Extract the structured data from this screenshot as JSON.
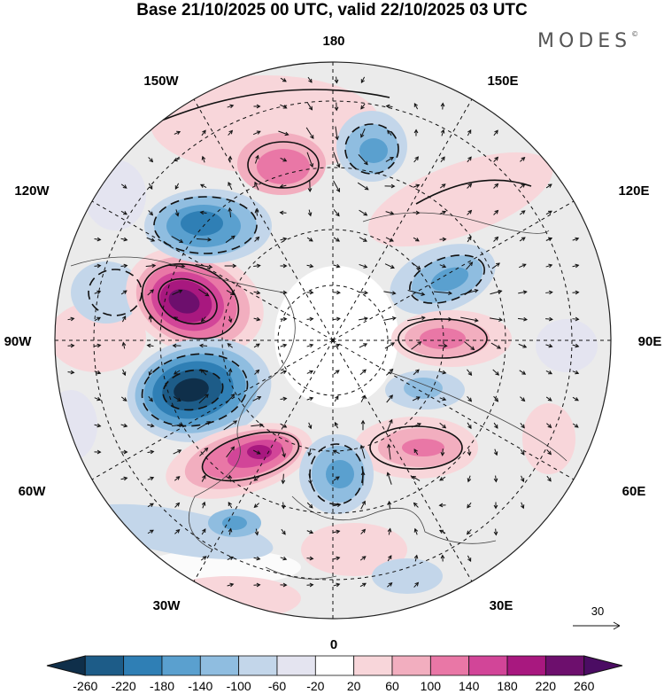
{
  "header": {
    "title": "Base 21/10/2025 00 UTC, valid 22/10/2025 03 UTC",
    "brand": "MODES",
    "brand_mark": "©"
  },
  "map": {
    "projection": "north-polar-stereographic",
    "longitude_labels": {
      "top": "180",
      "bottom": "0",
      "left": "90W",
      "right": "90E",
      "upper_left_outer": "150W",
      "upper_left_inner": "120W",
      "upper_right_outer": "150E",
      "upper_right_inner": "120E",
      "lower_left_outer": "60W",
      "lower_left_inner": "30W",
      "lower_right_outer": "60E",
      "lower_right_inner": "30E"
    },
    "vector_reference": {
      "label": "30"
    }
  },
  "colorbar": {
    "tick_labels": [
      "-260",
      "-220",
      "-180",
      "-140",
      "-100",
      "-60",
      "-20",
      "20",
      "60",
      "100",
      "140",
      "180",
      "220",
      "260"
    ],
    "colors": [
      "#0f2f4a",
      "#1d5c88",
      "#2f7fb5",
      "#5aa0cf",
      "#8fbde0",
      "#c3d6ea",
      "#e4e4f0",
      "#ffffff",
      "#f8d6da",
      "#f2aebf",
      "#e977a6",
      "#d24598",
      "#a8187f",
      "#6d0f6d",
      "#4b0c63"
    ]
  },
  "anomaly_centers": [
    {
      "label": "positive",
      "value": 260
    },
    {
      "label": "negative",
      "value": -260
    },
    {
      "label": "positive",
      "value": 220
    },
    {
      "label": "negative",
      "value": -180
    },
    {
      "label": "negative",
      "value": -140
    },
    {
      "label": "positive",
      "value": 140
    }
  ]
}
